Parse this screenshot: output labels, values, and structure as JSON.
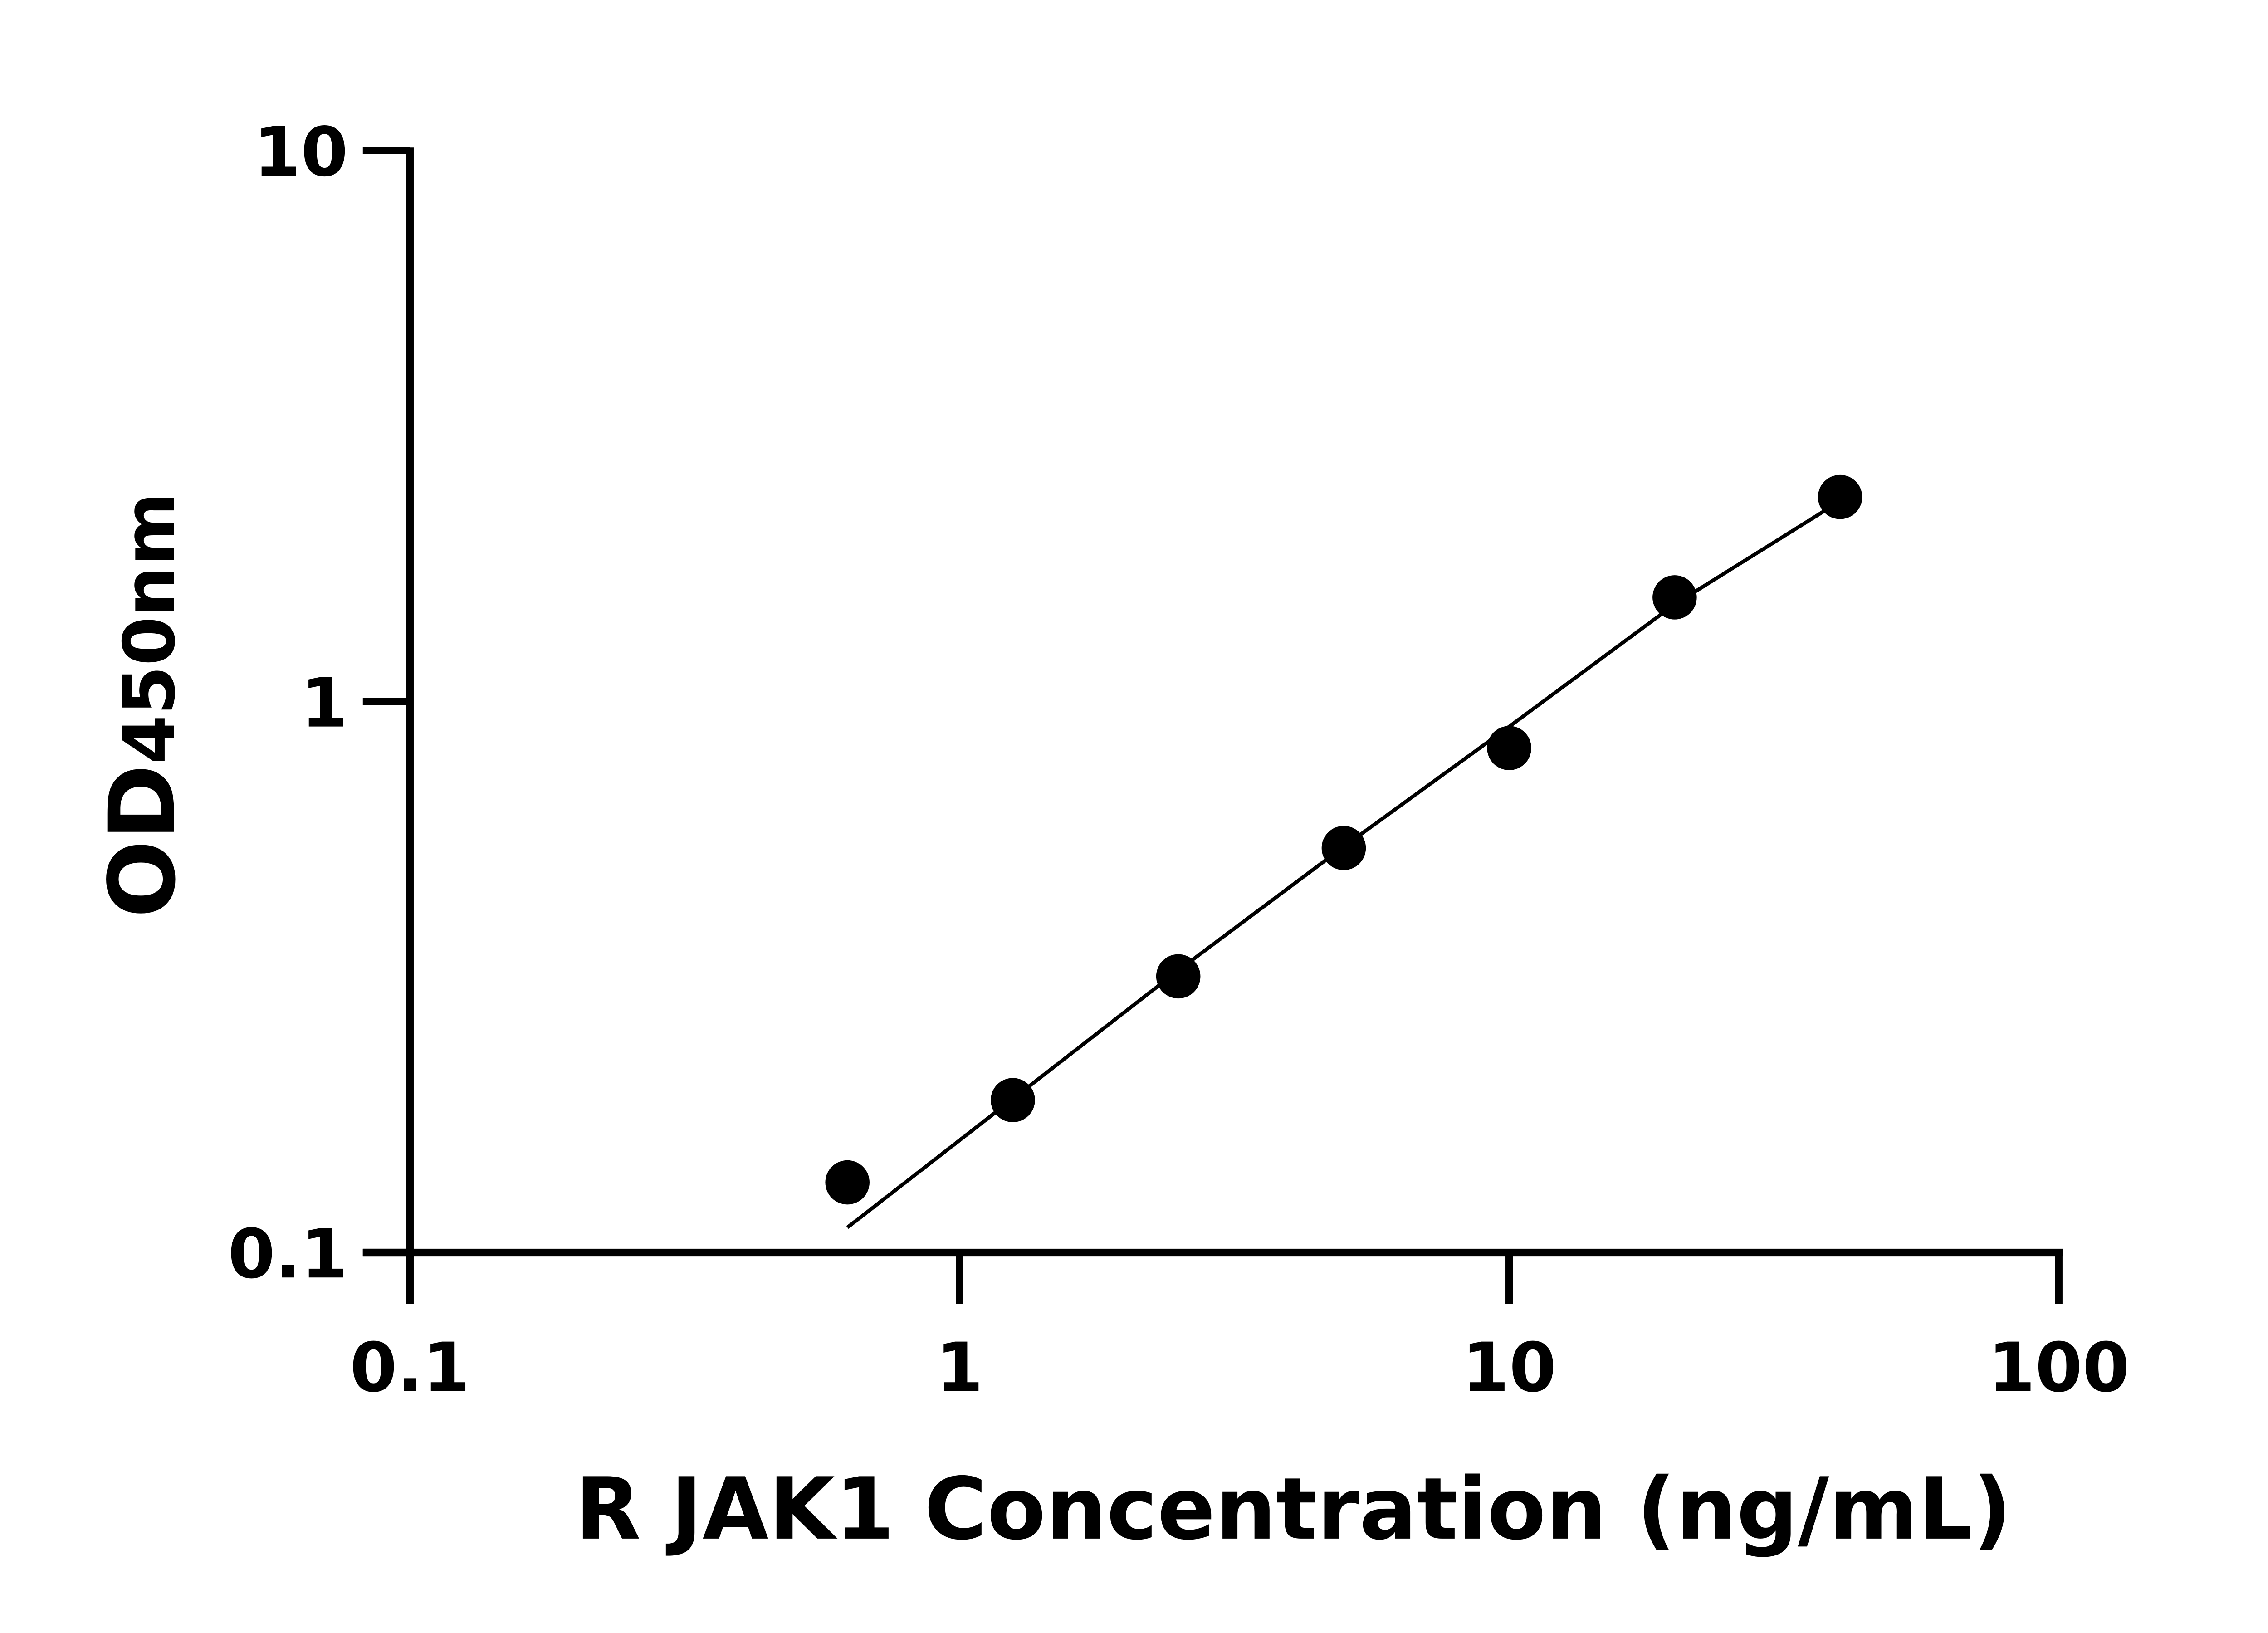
{
  "chart_data": {
    "type": "scatter",
    "xlabel": "R JAK1 Concentration (ng/mL)",
    "ylabel": {
      "main": "OD",
      "sub": "450nm"
    },
    "x_scale": "log",
    "y_scale": "log",
    "xlim": [
      0.1,
      100
    ],
    "ylim": [
      0.1,
      10
    ],
    "x_ticks": [
      "0.1",
      "1",
      "10",
      "100"
    ],
    "y_ticks": [
      "0.1",
      "1",
      "10"
    ],
    "grid": false,
    "series": [
      {
        "x": [
          0.625,
          1.25,
          2.5,
          5,
          10,
          20,
          40
        ],
        "y": [
          0.134,
          0.189,
          0.317,
          0.542,
          0.823,
          1.545,
          2.35
        ],
        "marker": "circle",
        "color": "#000000"
      }
    ],
    "fit_curve": {
      "x": [
        0.625,
        1.25,
        2.5,
        5,
        10,
        20,
        40
      ],
      "y": [
        0.111,
        0.19,
        0.325,
        0.545,
        0.9,
        1.5,
        2.31
      ],
      "color": "#000000"
    }
  }
}
